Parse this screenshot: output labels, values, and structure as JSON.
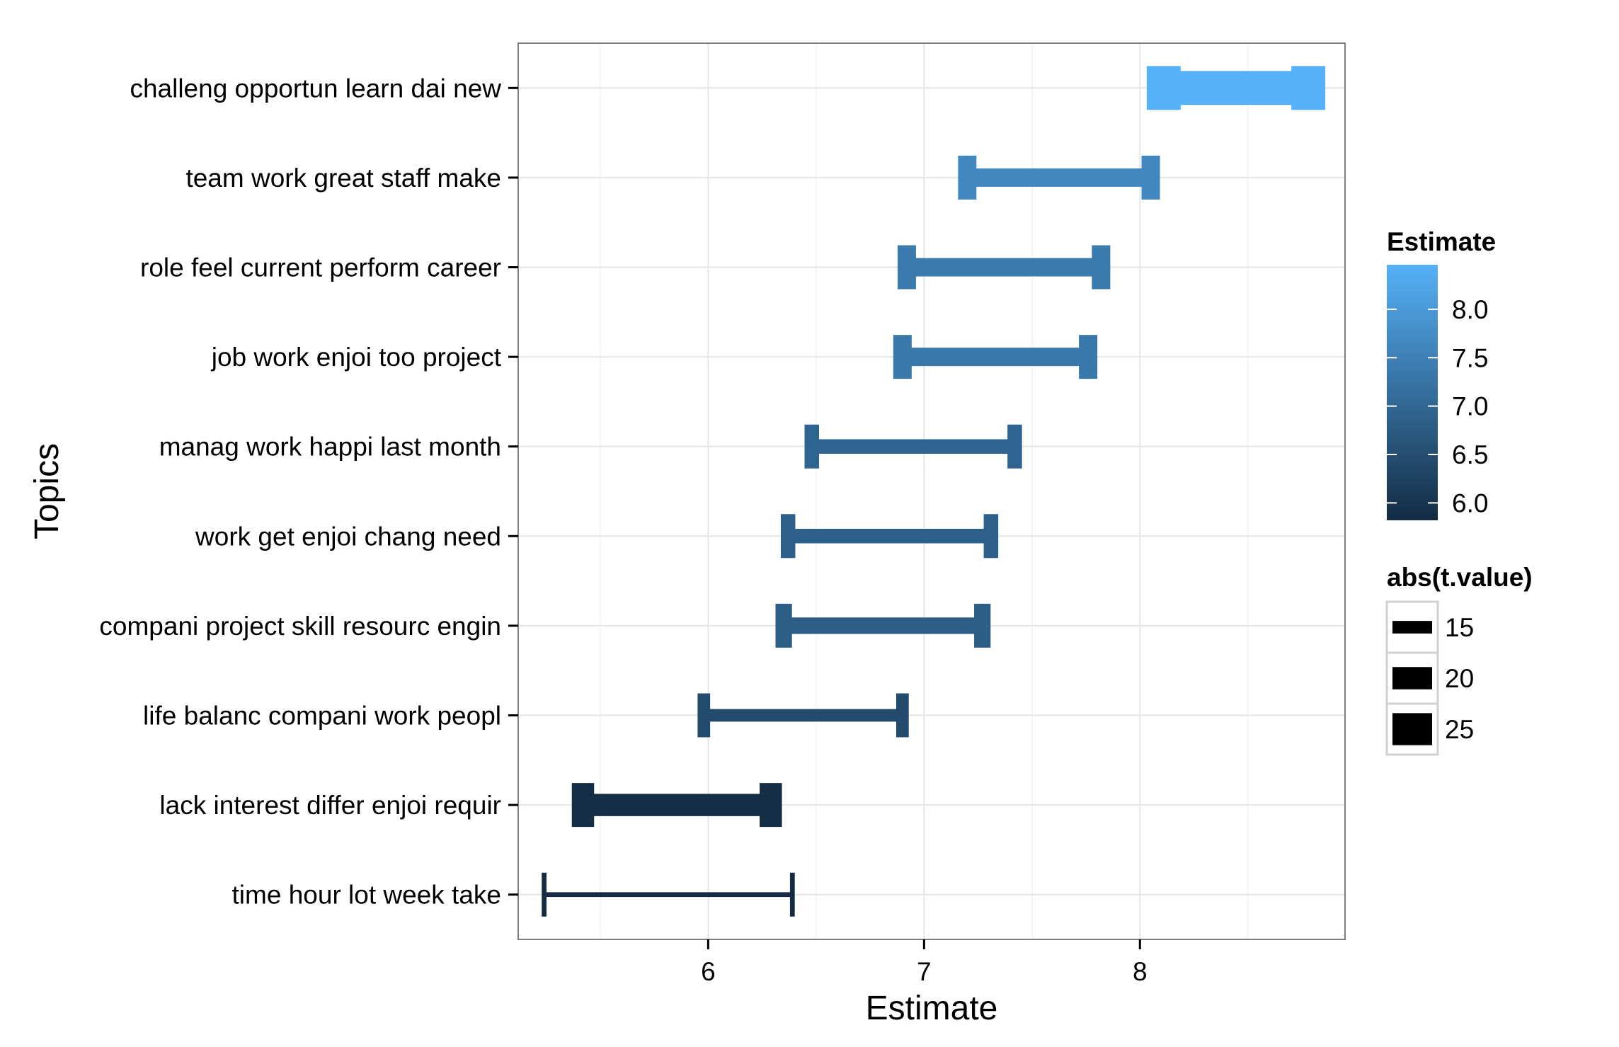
{
  "chart_data": {
    "type": "errorbar",
    "xlabel": "Estimate",
    "ylabel": "Topics",
    "xlim": [
      5.12,
      8.95
    ],
    "x_ticks": [
      {
        "value": 6,
        "label": "6"
      },
      {
        "value": 7,
        "label": "7"
      },
      {
        "value": 8,
        "label": "8"
      }
    ],
    "grid": true,
    "categories": [
      "challeng opportun learn dai new",
      "team work great staff make",
      "role feel current perform career",
      "job work enjoi too project",
      "manag work happi last month",
      "work get enjoi chang need",
      "compani project skill resourc engin",
      "life balanc compani work peopl",
      "lack interest differ enjoi requir",
      "time hour lot week take"
    ],
    "series": [
      {
        "topic": "challeng opportun learn dai new",
        "estimate": 8.46,
        "lower": 8.11,
        "upper": 8.78,
        "abs_t_value": 26
      },
      {
        "topic": "team work great staff make",
        "estimate": 7.66,
        "lower": 7.2,
        "upper": 8.05,
        "abs_t_value": 18
      },
      {
        "topic": "role feel current perform career",
        "estimate": 7.38,
        "lower": 6.92,
        "upper": 7.82,
        "abs_t_value": 18
      },
      {
        "topic": "job work enjoi too project",
        "estimate": 7.33,
        "lower": 6.9,
        "upper": 7.76,
        "abs_t_value": 18
      },
      {
        "topic": "manag work happi last month",
        "estimate": 6.95,
        "lower": 6.48,
        "upper": 7.42,
        "abs_t_value": 16
      },
      {
        "topic": "work get enjoi chang need",
        "estimate": 6.86,
        "lower": 6.37,
        "upper": 7.31,
        "abs_t_value": 16
      },
      {
        "topic": "compani project skill resourc engin",
        "estimate": 6.83,
        "lower": 6.35,
        "upper": 7.27,
        "abs_t_value": 17
      },
      {
        "topic": "life balanc compani work peopl",
        "estimate": 6.45,
        "lower": 5.98,
        "upper": 6.9,
        "abs_t_value": 15
      },
      {
        "topic": "lack interest differ enjoi requir",
        "estimate": 5.87,
        "lower": 5.42,
        "upper": 6.29,
        "abs_t_value": 20
      },
      {
        "topic": "time hour lot week take",
        "estimate": 5.82,
        "lower": 5.24,
        "upper": 6.39,
        "abs_t_value": 11
      }
    ],
    "legends": {
      "color": {
        "title": "Estimate",
        "breaks": [
          {
            "value": 8.0,
            "label": "8.0"
          },
          {
            "value": 7.5,
            "label": "7.5"
          },
          {
            "value": 7.0,
            "label": "7.0"
          },
          {
            "value": 6.5,
            "label": "6.5"
          },
          {
            "value": 6.0,
            "label": "6.0"
          }
        ],
        "range": [
          5.82,
          8.46
        ],
        "low_color": "#132B43",
        "high_color": "#56B1F7"
      },
      "size": {
        "title": "abs(t.value)",
        "breaks": [
          {
            "value": 15,
            "label": "15"
          },
          {
            "value": 20,
            "label": "20"
          },
          {
            "value": 25,
            "label": "25"
          }
        ]
      }
    },
    "colors": {
      "panel_border": "#7f7f7f",
      "grid_major": "#e6e6e6",
      "grid_minor": "#f3f3f3"
    }
  }
}
